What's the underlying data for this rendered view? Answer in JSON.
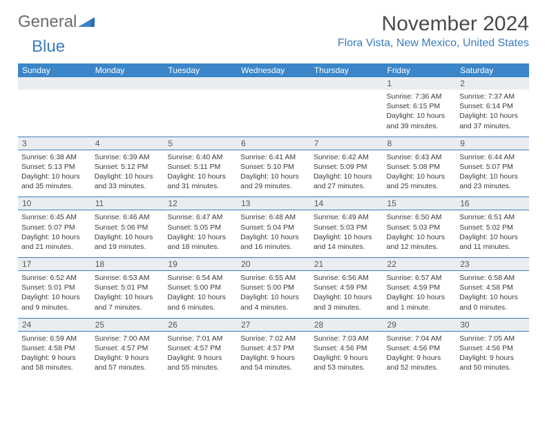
{
  "logo": {
    "word1": "General",
    "word2": "Blue"
  },
  "header": {
    "month_title": "November 2024",
    "location": "Flora Vista, New Mexico, United States"
  },
  "colors": {
    "header_bg": "#3b86c8",
    "header_text": "#ffffff",
    "border": "#3b7bbf",
    "daynum_bg": "#e9edf1",
    "body_text": "#3a3a3a",
    "logo_gray": "#6b6b6b",
    "logo_blue": "#3b7bbf"
  },
  "day_labels": [
    "Sunday",
    "Monday",
    "Tuesday",
    "Wednesday",
    "Thursday",
    "Friday",
    "Saturday"
  ],
  "weeks": [
    [
      {
        "blank": true
      },
      {
        "blank": true
      },
      {
        "blank": true
      },
      {
        "blank": true
      },
      {
        "blank": true
      },
      {
        "num": "1",
        "sunrise": "Sunrise: 7:36 AM",
        "sunset": "Sunset: 6:15 PM",
        "day1": "Daylight: 10 hours",
        "day2": "and 39 minutes."
      },
      {
        "num": "2",
        "sunrise": "Sunrise: 7:37 AM",
        "sunset": "Sunset: 6:14 PM",
        "day1": "Daylight: 10 hours",
        "day2": "and 37 minutes."
      }
    ],
    [
      {
        "num": "3",
        "sunrise": "Sunrise: 6:38 AM",
        "sunset": "Sunset: 5:13 PM",
        "day1": "Daylight: 10 hours",
        "day2": "and 35 minutes."
      },
      {
        "num": "4",
        "sunrise": "Sunrise: 6:39 AM",
        "sunset": "Sunset: 5:12 PM",
        "day1": "Daylight: 10 hours",
        "day2": "and 33 minutes."
      },
      {
        "num": "5",
        "sunrise": "Sunrise: 6:40 AM",
        "sunset": "Sunset: 5:11 PM",
        "day1": "Daylight: 10 hours",
        "day2": "and 31 minutes."
      },
      {
        "num": "6",
        "sunrise": "Sunrise: 6:41 AM",
        "sunset": "Sunset: 5:10 PM",
        "day1": "Daylight: 10 hours",
        "day2": "and 29 minutes."
      },
      {
        "num": "7",
        "sunrise": "Sunrise: 6:42 AM",
        "sunset": "Sunset: 5:09 PM",
        "day1": "Daylight: 10 hours",
        "day2": "and 27 minutes."
      },
      {
        "num": "8",
        "sunrise": "Sunrise: 6:43 AM",
        "sunset": "Sunset: 5:08 PM",
        "day1": "Daylight: 10 hours",
        "day2": "and 25 minutes."
      },
      {
        "num": "9",
        "sunrise": "Sunrise: 6:44 AM",
        "sunset": "Sunset: 5:07 PM",
        "day1": "Daylight: 10 hours",
        "day2": "and 23 minutes."
      }
    ],
    [
      {
        "num": "10",
        "sunrise": "Sunrise: 6:45 AM",
        "sunset": "Sunset: 5:07 PM",
        "day1": "Daylight: 10 hours",
        "day2": "and 21 minutes."
      },
      {
        "num": "11",
        "sunrise": "Sunrise: 6:46 AM",
        "sunset": "Sunset: 5:06 PM",
        "day1": "Daylight: 10 hours",
        "day2": "and 19 minutes."
      },
      {
        "num": "12",
        "sunrise": "Sunrise: 6:47 AM",
        "sunset": "Sunset: 5:05 PM",
        "day1": "Daylight: 10 hours",
        "day2": "and 18 minutes."
      },
      {
        "num": "13",
        "sunrise": "Sunrise: 6:48 AM",
        "sunset": "Sunset: 5:04 PM",
        "day1": "Daylight: 10 hours",
        "day2": "and 16 minutes."
      },
      {
        "num": "14",
        "sunrise": "Sunrise: 6:49 AM",
        "sunset": "Sunset: 5:03 PM",
        "day1": "Daylight: 10 hours",
        "day2": "and 14 minutes."
      },
      {
        "num": "15",
        "sunrise": "Sunrise: 6:50 AM",
        "sunset": "Sunset: 5:03 PM",
        "day1": "Daylight: 10 hours",
        "day2": "and 12 minutes."
      },
      {
        "num": "16",
        "sunrise": "Sunrise: 6:51 AM",
        "sunset": "Sunset: 5:02 PM",
        "day1": "Daylight: 10 hours",
        "day2": "and 11 minutes."
      }
    ],
    [
      {
        "num": "17",
        "sunrise": "Sunrise: 6:52 AM",
        "sunset": "Sunset: 5:01 PM",
        "day1": "Daylight: 10 hours",
        "day2": "and 9 minutes."
      },
      {
        "num": "18",
        "sunrise": "Sunrise: 6:53 AM",
        "sunset": "Sunset: 5:01 PM",
        "day1": "Daylight: 10 hours",
        "day2": "and 7 minutes."
      },
      {
        "num": "19",
        "sunrise": "Sunrise: 6:54 AM",
        "sunset": "Sunset: 5:00 PM",
        "day1": "Daylight: 10 hours",
        "day2": "and 6 minutes."
      },
      {
        "num": "20",
        "sunrise": "Sunrise: 6:55 AM",
        "sunset": "Sunset: 5:00 PM",
        "day1": "Daylight: 10 hours",
        "day2": "and 4 minutes."
      },
      {
        "num": "21",
        "sunrise": "Sunrise: 6:56 AM",
        "sunset": "Sunset: 4:59 PM",
        "day1": "Daylight: 10 hours",
        "day2": "and 3 minutes."
      },
      {
        "num": "22",
        "sunrise": "Sunrise: 6:57 AM",
        "sunset": "Sunset: 4:59 PM",
        "day1": "Daylight: 10 hours",
        "day2": "and 1 minute."
      },
      {
        "num": "23",
        "sunrise": "Sunrise: 6:58 AM",
        "sunset": "Sunset: 4:58 PM",
        "day1": "Daylight: 10 hours",
        "day2": "and 0 minutes."
      }
    ],
    [
      {
        "num": "24",
        "sunrise": "Sunrise: 6:59 AM",
        "sunset": "Sunset: 4:58 PM",
        "day1": "Daylight: 9 hours",
        "day2": "and 58 minutes."
      },
      {
        "num": "25",
        "sunrise": "Sunrise: 7:00 AM",
        "sunset": "Sunset: 4:57 PM",
        "day1": "Daylight: 9 hours",
        "day2": "and 57 minutes."
      },
      {
        "num": "26",
        "sunrise": "Sunrise: 7:01 AM",
        "sunset": "Sunset: 4:57 PM",
        "day1": "Daylight: 9 hours",
        "day2": "and 55 minutes."
      },
      {
        "num": "27",
        "sunrise": "Sunrise: 7:02 AM",
        "sunset": "Sunset: 4:57 PM",
        "day1": "Daylight: 9 hours",
        "day2": "and 54 minutes."
      },
      {
        "num": "28",
        "sunrise": "Sunrise: 7:03 AM",
        "sunset": "Sunset: 4:56 PM",
        "day1": "Daylight: 9 hours",
        "day2": "and 53 minutes."
      },
      {
        "num": "29",
        "sunrise": "Sunrise: 7:04 AM",
        "sunset": "Sunset: 4:56 PM",
        "day1": "Daylight: 9 hours",
        "day2": "and 52 minutes."
      },
      {
        "num": "30",
        "sunrise": "Sunrise: 7:05 AM",
        "sunset": "Sunset: 4:56 PM",
        "day1": "Daylight: 9 hours",
        "day2": "and 50 minutes."
      }
    ]
  ]
}
